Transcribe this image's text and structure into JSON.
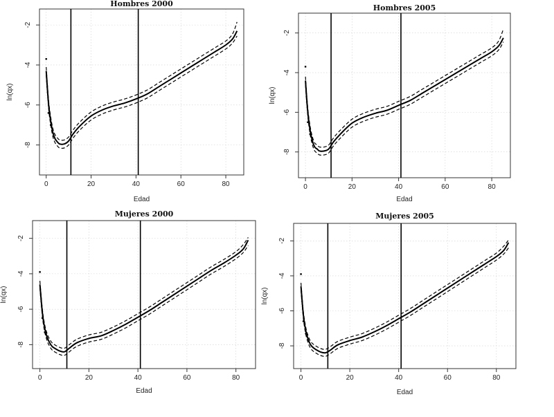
{
  "figure": {
    "chart_data": [
      {
        "type": "line",
        "title": "Hombres 2000",
        "xlabel": "Edad",
        "ylabel": "ln(qx)",
        "xlim": [
          -3,
          88
        ],
        "ylim": [
          -9.5,
          -1.2
        ],
        "xticks": [
          "0",
          "20",
          "40",
          "60",
          "80"
        ],
        "yticks": [
          "-2",
          "-4",
          "-6",
          "-8"
        ],
        "vlines": [
          11,
          41
        ],
        "x": [
          0,
          1,
          2,
          3,
          4,
          5,
          6,
          8,
          10,
          12,
          15,
          20,
          25,
          30,
          35,
          40,
          45,
          50,
          55,
          60,
          65,
          70,
          75,
          80,
          83,
          85
        ],
        "series": [
          {
            "name": "estimate",
            "values": [
              -4.3,
              -5.9,
              -6.8,
              -7.4,
              -7.7,
              -7.85,
              -7.95,
              -7.95,
              -7.8,
              -7.45,
              -7.05,
              -6.55,
              -6.25,
              -6.05,
              -5.9,
              -5.7,
              -5.45,
              -5.1,
              -4.75,
              -4.4,
              -4.05,
              -3.7,
              -3.35,
              -3.0,
              -2.7,
              -2.3
            ]
          },
          {
            "name": "upper",
            "values": [
              -4.1,
              -5.7,
              -6.6,
              -7.2,
              -7.5,
              -7.65,
              -7.75,
              -7.75,
              -7.6,
              -7.25,
              -6.85,
              -6.35,
              -6.05,
              -5.85,
              -5.7,
              -5.5,
              -5.25,
              -4.9,
              -4.55,
              -4.2,
              -3.85,
              -3.5,
              -3.15,
              -2.8,
              -2.45,
              -1.85
            ]
          },
          {
            "name": "lower",
            "values": [
              -4.5,
              -6.1,
              -7.0,
              -7.6,
              -7.9,
              -8.05,
              -8.15,
              -8.15,
              -8.0,
              -7.65,
              -7.25,
              -6.75,
              -6.45,
              -6.25,
              -6.1,
              -5.9,
              -5.65,
              -5.3,
              -4.95,
              -4.6,
              -4.25,
              -3.9,
              -3.55,
              -3.2,
              -2.9,
              -2.55
            ]
          }
        ],
        "points_x": [
          0,
          1,
          2
        ],
        "points_y": [
          -3.7,
          -6.4,
          -7.0
        ]
      },
      {
        "type": "line",
        "title": "Hombres 2005",
        "xlabel": "Edad",
        "ylabel": "ln(qx)",
        "xlim": [
          -3,
          88
        ],
        "ylim": [
          -9.3,
          -1.0
        ],
        "xticks": [
          "0",
          "20",
          "40",
          "60",
          "80"
        ],
        "yticks": [
          "-2",
          "-4",
          "-6",
          "-8"
        ],
        "vlines": [
          11,
          41
        ],
        "x": [
          0,
          1,
          2,
          3,
          4,
          5,
          6,
          8,
          10,
          12,
          15,
          20,
          25,
          30,
          35,
          40,
          45,
          50,
          55,
          60,
          65,
          70,
          75,
          80,
          83,
          85
        ],
        "series": [
          {
            "name": "estimate",
            "values": [
              -4.4,
              -6.0,
              -6.9,
              -7.45,
              -7.75,
              -7.85,
              -7.95,
              -7.95,
              -7.85,
              -7.5,
              -7.1,
              -6.55,
              -6.25,
              -6.05,
              -5.9,
              -5.65,
              -5.4,
              -5.05,
              -4.7,
              -4.35,
              -4.0,
              -3.65,
              -3.3,
              -2.95,
              -2.65,
              -2.25
            ]
          },
          {
            "name": "upper",
            "values": [
              -4.2,
              -5.8,
              -6.7,
              -7.25,
              -7.55,
              -7.65,
              -7.75,
              -7.75,
              -7.65,
              -7.3,
              -6.9,
              -6.35,
              -6.05,
              -5.85,
              -5.7,
              -5.45,
              -5.2,
              -4.85,
              -4.5,
              -4.15,
              -3.8,
              -3.45,
              -3.1,
              -2.75,
              -2.4,
              -1.8
            ]
          },
          {
            "name": "lower",
            "values": [
              -4.6,
              -6.2,
              -7.1,
              -7.65,
              -7.95,
              -8.05,
              -8.15,
              -8.15,
              -8.05,
              -7.7,
              -7.3,
              -6.75,
              -6.45,
              -6.25,
              -6.1,
              -5.85,
              -5.6,
              -5.25,
              -4.9,
              -4.55,
              -4.2,
              -3.85,
              -3.5,
              -3.15,
              -2.85,
              -2.45
            ]
          }
        ],
        "points_x": [
          0,
          1,
          2
        ],
        "points_y": [
          -3.7,
          -6.5,
          -7.1
        ]
      },
      {
        "type": "line",
        "title": "Mujeres 2000",
        "xlabel": "Edad",
        "ylabel": "ln(qx)",
        "xlim": [
          -3,
          88
        ],
        "ylim": [
          -9.35,
          -1.0
        ],
        "xticks": [
          "0",
          "20",
          "40",
          "60",
          "80"
        ],
        "yticks": [
          "-2",
          "-4",
          "-6",
          "-8"
        ],
        "vlines": [
          11,
          41
        ],
        "x": [
          0,
          1,
          2,
          3,
          4,
          5,
          6,
          8,
          10,
          12,
          15,
          20,
          25,
          30,
          35,
          40,
          45,
          50,
          55,
          60,
          65,
          70,
          75,
          80,
          83,
          85
        ],
        "series": [
          {
            "name": "estimate",
            "values": [
              -4.6,
              -6.2,
              -7.1,
              -7.6,
              -7.9,
              -8.1,
              -8.2,
              -8.35,
              -8.4,
              -8.2,
              -7.9,
              -7.65,
              -7.5,
              -7.2,
              -6.85,
              -6.45,
              -6.05,
              -5.6,
              -5.15,
              -4.7,
              -4.25,
              -3.8,
              -3.4,
              -2.95,
              -2.6,
              -2.1
            ]
          },
          {
            "name": "upper",
            "values": [
              -4.4,
              -6.0,
              -6.9,
              -7.4,
              -7.7,
              -7.9,
              -8.0,
              -8.15,
              -8.2,
              -8.0,
              -7.7,
              -7.45,
              -7.3,
              -7.0,
              -6.65,
              -6.25,
              -5.85,
              -5.4,
              -4.95,
              -4.5,
              -4.05,
              -3.6,
              -3.2,
              -2.75,
              -2.35,
              -1.95
            ]
          },
          {
            "name": "lower",
            "values": [
              -4.8,
              -6.4,
              -7.3,
              -7.8,
              -8.1,
              -8.3,
              -8.4,
              -8.55,
              -8.6,
              -8.4,
              -8.1,
              -7.85,
              -7.7,
              -7.4,
              -7.05,
              -6.65,
              -6.25,
              -5.8,
              -5.35,
              -4.9,
              -4.45,
              -4.0,
              -3.6,
              -3.15,
              -2.8,
              -2.4
            ]
          }
        ],
        "points_x": [
          0,
          1,
          2
        ],
        "points_y": [
          -3.9,
          -6.5,
          -7.3
        ]
      },
      {
        "type": "line",
        "title": "Mujeres 2005",
        "xlabel": "Edad",
        "ylabel": "ln(qx)",
        "xlim": [
          -3,
          88
        ],
        "ylim": [
          -9.3,
          -1.0
        ],
        "xticks": [
          "0",
          "20",
          "40",
          "60",
          "80"
        ],
        "yticks": [
          "-2",
          "-4",
          "-6",
          "-8"
        ],
        "vlines": [
          11,
          41
        ],
        "x": [
          0,
          1,
          2,
          3,
          4,
          5,
          6,
          8,
          10,
          12,
          15,
          20,
          25,
          30,
          35,
          40,
          45,
          50,
          55,
          60,
          65,
          70,
          75,
          80,
          83,
          85
        ],
        "series": [
          {
            "name": "estimate",
            "values": [
              -4.6,
              -6.25,
              -7.15,
              -7.65,
              -7.95,
              -8.1,
              -8.2,
              -8.35,
              -8.4,
              -8.25,
              -7.95,
              -7.7,
              -7.5,
              -7.2,
              -6.85,
              -6.45,
              -6.05,
              -5.6,
              -5.15,
              -4.7,
              -4.25,
              -3.8,
              -3.35,
              -2.9,
              -2.55,
              -2.1
            ]
          },
          {
            "name": "upper",
            "values": [
              -4.4,
              -6.05,
              -6.95,
              -7.45,
              -7.75,
              -7.9,
              -8.0,
              -8.15,
              -8.2,
              -8.05,
              -7.75,
              -7.5,
              -7.3,
              -7.0,
              -6.65,
              -6.25,
              -5.85,
              -5.4,
              -4.95,
              -4.5,
              -4.05,
              -3.6,
              -3.15,
              -2.7,
              -2.3,
              -1.95
            ]
          },
          {
            "name": "lower",
            "values": [
              -4.8,
              -6.45,
              -7.35,
              -7.85,
              -8.15,
              -8.3,
              -8.4,
              -8.55,
              -8.6,
              -8.45,
              -8.15,
              -7.9,
              -7.7,
              -7.4,
              -7.05,
              -6.65,
              -6.25,
              -5.8,
              -5.35,
              -4.9,
              -4.45,
              -4.0,
              -3.55,
              -3.1,
              -2.75,
              -2.4
            ]
          }
        ],
        "points_x": [
          0,
          1,
          2
        ],
        "points_y": [
          -3.9,
          -6.6,
          -7.3
        ]
      }
    ]
  }
}
